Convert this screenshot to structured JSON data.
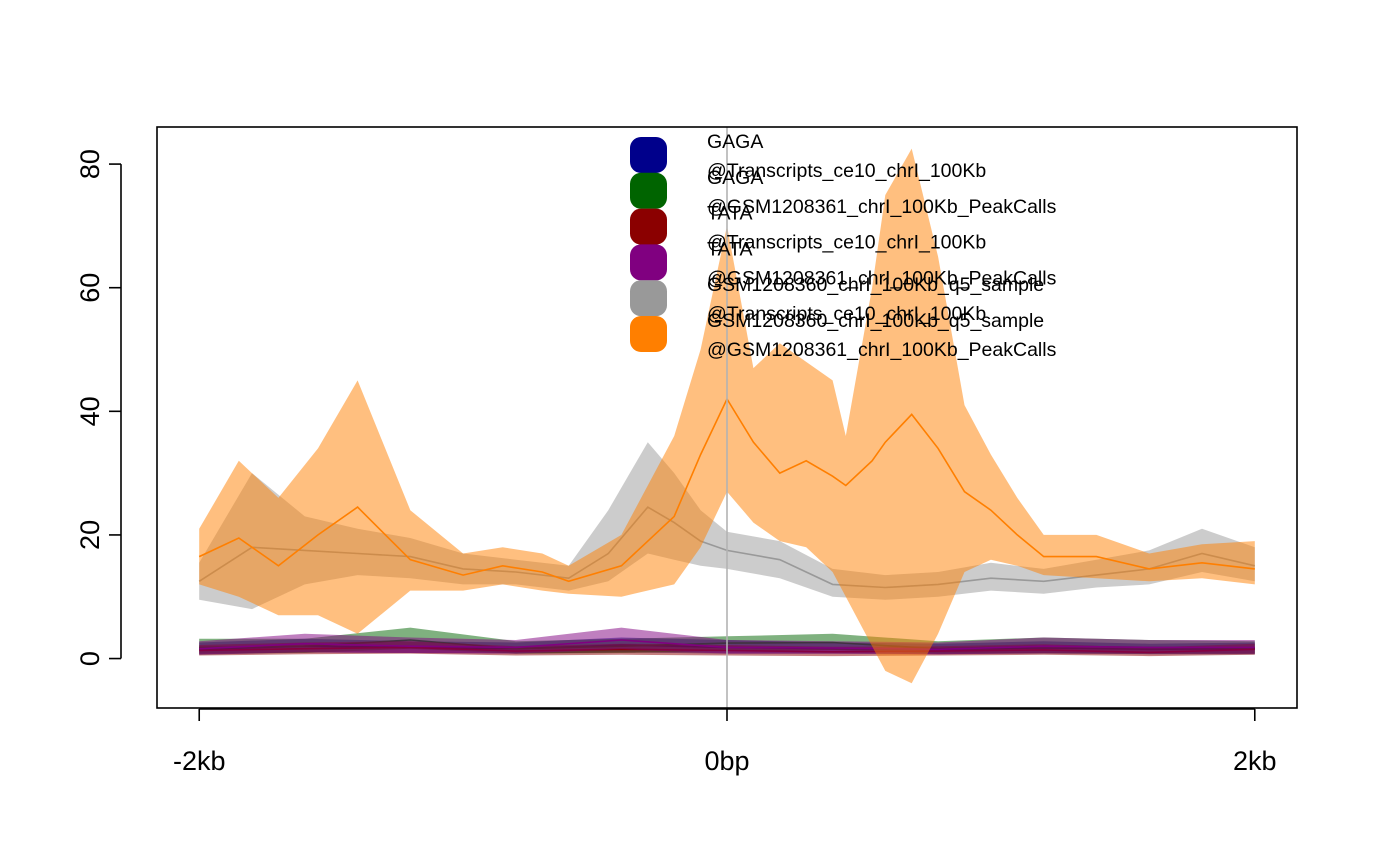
{
  "chart_data": {
    "type": "area",
    "x_ticks": [
      {
        "value": -2000,
        "label": "-2kb"
      },
      {
        "value": 0,
        "label": "0bp"
      },
      {
        "value": 2000,
        "label": "2kb"
      }
    ],
    "y_ticks": [
      0,
      20,
      40,
      60,
      80
    ],
    "xlim": [
      -2160,
      2160
    ],
    "ylim": [
      -8,
      86
    ],
    "vline_x": 0,
    "series": [
      {
        "name": "GAGA\n@Transcripts_ce10_chrI_100Kb",
        "color": "#00008B",
        "x": [
          -2000,
          -1600,
          -1200,
          -800,
          -400,
          0,
          400,
          800,
          1200,
          1600,
          2000
        ],
        "mean": [
          1.5,
          2.0,
          1.8,
          1.6,
          2.2,
          1.8,
          1.6,
          1.5,
          1.7,
          1.5,
          1.6
        ],
        "ci_low": [
          0.6,
          1.0,
          0.9,
          0.8,
          1.0,
          0.8,
          0.8,
          0.7,
          0.8,
          0.7,
          0.7
        ],
        "ci_high": [
          2.6,
          3.2,
          2.8,
          2.6,
          3.4,
          3.0,
          2.6,
          2.4,
          2.8,
          2.4,
          2.6
        ]
      },
      {
        "name": "GAGA\n@GSM1208361_chrI_100Kb_PeakCalls",
        "color": "#006400",
        "x": [
          -2000,
          -1600,
          -1200,
          -800,
          -400,
          0,
          400,
          800,
          1200,
          1600,
          2000
        ],
        "mean": [
          1.8,
          2.0,
          3.0,
          1.6,
          2.0,
          2.5,
          2.6,
          1.6,
          2.0,
          1.8,
          1.7
        ],
        "ci_low": [
          0.8,
          0.9,
          1.6,
          0.8,
          0.9,
          1.2,
          1.4,
          0.8,
          0.9,
          0.8,
          0.8
        ],
        "ci_high": [
          3.2,
          3.2,
          5.0,
          2.8,
          3.2,
          3.6,
          4.0,
          2.8,
          3.4,
          3.0,
          2.8
        ]
      },
      {
        "name": "TATA\n@Transcripts_ce10_chrI_100Kb",
        "color": "#8B0000",
        "x": [
          -2000,
          -1600,
          -1200,
          -800,
          -400,
          0,
          400,
          800,
          1200,
          1600,
          2000
        ],
        "mean": [
          1.3,
          1.6,
          1.8,
          1.2,
          1.5,
          1.3,
          1.1,
          1.2,
          1.4,
          1.0,
          1.5
        ],
        "ci_low": [
          0.5,
          0.7,
          0.8,
          0.5,
          0.6,
          0.5,
          0.4,
          0.5,
          0.6,
          0.4,
          0.6
        ],
        "ci_high": [
          2.2,
          2.6,
          2.8,
          2.0,
          2.4,
          2.2,
          1.9,
          2.0,
          2.3,
          1.8,
          2.4
        ]
      },
      {
        "name": "TATA\n@GSM1208361_chrI_100Kb_PeakCalls",
        "color": "#800080",
        "x": [
          -2000,
          -1600,
          -1200,
          -800,
          -400,
          0,
          400,
          800,
          1200,
          1600,
          2000
        ],
        "mean": [
          1.6,
          2.4,
          2.0,
          1.8,
          3.0,
          1.8,
          1.7,
          1.5,
          2.0,
          1.8,
          1.8
        ],
        "ci_low": [
          0.7,
          1.0,
          0.9,
          0.8,
          1.5,
          0.8,
          0.8,
          0.7,
          0.9,
          0.8,
          0.8
        ],
        "ci_high": [
          2.8,
          4.0,
          3.4,
          3.0,
          5.0,
          3.0,
          2.8,
          2.6,
          3.4,
          3.0,
          3.0
        ]
      },
      {
        "name": "GSM1208360_chrI_100Kb_q5_sample\n@Transcripts_ce10_chrI_100Kb",
        "color": "#999999",
        "x": [
          -2000,
          -1800,
          -1600,
          -1400,
          -1200,
          -1000,
          -800,
          -600,
          -450,
          -300,
          -200,
          -100,
          0,
          200,
          400,
          600,
          800,
          1000,
          1200,
          1400,
          1600,
          1800,
          2000
        ],
        "mean": [
          12.5,
          18.0,
          17.5,
          17.0,
          16.5,
          14.5,
          14.0,
          13.0,
          17.0,
          24.5,
          22.0,
          19.0,
          17.5,
          16.0,
          12.0,
          11.5,
          12.0,
          13.0,
          12.5,
          13.5,
          14.5,
          17.0,
          15.0
        ],
        "ci_low": [
          9.5,
          8.0,
          12.0,
          13.5,
          13.0,
          12.0,
          12.0,
          11.0,
          12.5,
          17.0,
          16.0,
          15.0,
          14.5,
          13.0,
          10.0,
          9.5,
          10.0,
          11.0,
          10.5,
          11.5,
          12.0,
          14.0,
          12.5
        ],
        "ci_high": [
          15.5,
          30.0,
          23.0,
          21.0,
          19.5,
          17.0,
          16.0,
          15.0,
          24.0,
          35.0,
          30.0,
          24.0,
          20.5,
          19.0,
          14.5,
          13.5,
          14.0,
          15.5,
          14.5,
          16.0,
          17.5,
          21.0,
          18.0
        ]
      },
      {
        "name": "GSM1208360_chrI_100Kb_q5_sample\n@GSM1208361_chrI_100Kb_PeakCalls",
        "color": "#FF7F00",
        "x": [
          -2000,
          -1850,
          -1700,
          -1550,
          -1400,
          -1200,
          -1000,
          -850,
          -700,
          -600,
          -400,
          -200,
          -100,
          0,
          100,
          200,
          300,
          400,
          450,
          550,
          600,
          700,
          800,
          900,
          1000,
          1100,
          1200,
          1400,
          1600,
          1800,
          2000
        ],
        "mean": [
          16.5,
          19.5,
          15.0,
          20.0,
          24.5,
          16.0,
          13.5,
          15.0,
          14.0,
          12.5,
          15.0,
          23.0,
          33.0,
          42.0,
          35.0,
          30.0,
          32.0,
          29.5,
          28.0,
          32.0,
          35.0,
          39.5,
          34.0,
          27.0,
          24.0,
          20.0,
          16.5,
          16.5,
          14.5,
          15.5,
          14.5
        ],
        "ci_low": [
          12.0,
          10.0,
          7.0,
          7.0,
          4.0,
          11.0,
          11.0,
          12.0,
          11.0,
          10.5,
          10.0,
          12.0,
          18.0,
          27.0,
          22.0,
          19.0,
          18.0,
          14.0,
          10.0,
          2.0,
          -2.0,
          -4.0,
          4.0,
          14.0,
          16.0,
          15.0,
          13.5,
          13.0,
          12.5,
          13.0,
          12.0
        ],
        "ci_high": [
          21.0,
          32.0,
          26.0,
          34.0,
          45.0,
          24.0,
          17.0,
          18.0,
          17.0,
          15.0,
          20.0,
          36.0,
          50.0,
          70.0,
          47.0,
          51.0,
          48.0,
          45.0,
          36.0,
          60.0,
          75.0,
          82.5,
          65.0,
          41.0,
          33.0,
          26.0,
          20.0,
          20.0,
          17.0,
          18.5,
          19.0
        ]
      }
    ]
  }
}
